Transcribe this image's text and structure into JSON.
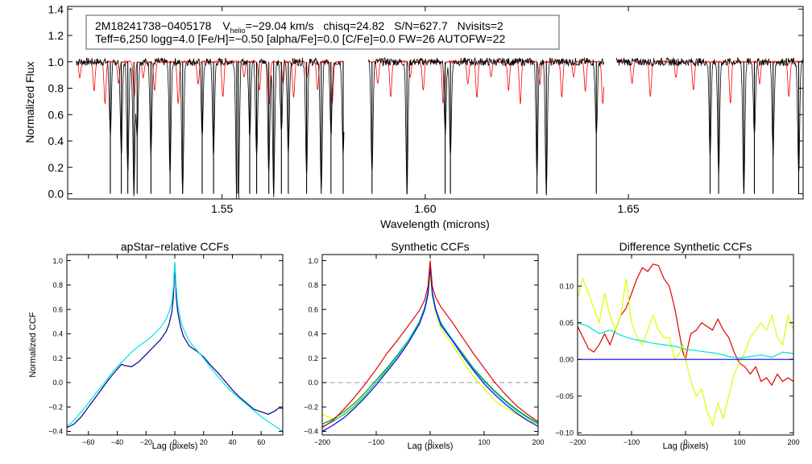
{
  "chart_data": [
    {
      "id": "spectrum",
      "type": "line",
      "title": "",
      "xlabel": "Wavelength (microns)",
      "ylabel": "Normalized Flux",
      "xlim": [
        1.512,
        1.693
      ],
      "ylim": [
        -0.04,
        1.42
      ],
      "xticks": [
        1.55,
        1.6,
        1.65
      ],
      "xtick_labels": [
        "1.55",
        "1.60",
        "1.65"
      ],
      "yticks": [
        0.0,
        0.2,
        0.4,
        0.6,
        0.8,
        1.0,
        1.2,
        1.4
      ],
      "ytick_labels": [
        "0.0",
        "0.2",
        "0.4",
        "0.6",
        "0.8",
        "1.0",
        "1.2",
        "1.4"
      ],
      "legend_position": "top-left",
      "annotation": {
        "star_id": "2M18241738−0405178",
        "vhelio_prefix": "V",
        "vhelio_subscript": "helio",
        "vhelio_value": "=−29.04 km/s",
        "chisq": "chisq=24.82",
        "snr": "S/N=627.7",
        "nvisits": "Nvisits=2",
        "line2": "Teff=6,250 logg=4.0 [Fe/H]=−0.50 [alpha/Fe]=0.0 [C/Fe]=0.0 FW=26 AUTOFW=22"
      },
      "chips": [
        [
          1.514,
          1.58
        ],
        [
          1.586,
          1.644
        ],
        [
          1.647,
          1.697
        ]
      ],
      "continuum": 1.0,
      "observed_lines": [
        1.5225,
        1.5252,
        1.5268,
        1.5283,
        1.5291,
        1.5325,
        1.5372,
        1.5403,
        1.5451,
        1.5479,
        1.5536,
        1.554,
        1.5568,
        1.5585,
        1.5615,
        1.5627,
        1.5646,
        1.5663,
        1.5708,
        1.5744,
        1.5768,
        1.5798,
        1.5869,
        1.5955,
        1.6049,
        1.6062,
        1.6275,
        1.6298,
        1.6421,
        1.6701,
        1.6722,
        1.6784,
        1.681,
        1.6856,
        1.6919
      ],
      "model_lines": [
        1.515,
        1.5185,
        1.5212,
        1.5245,
        1.5284,
        1.5306,
        1.5334,
        1.5392,
        1.5441,
        1.5502,
        1.5554,
        1.5592,
        1.5616,
        1.565,
        1.5676,
        1.5709,
        1.5735,
        1.5771,
        1.5883,
        1.5915,
        1.5963,
        1.5995,
        1.6044,
        1.6105,
        1.6127,
        1.6162,
        1.6205,
        1.6234,
        1.6282,
        1.6336,
        1.6365,
        1.6394,
        1.6437,
        1.6509,
        1.6554,
        1.6617,
        1.666,
        1.6751,
        1.6823,
        1.6895
      ],
      "series": [
        {
          "name": "observed",
          "color": "#000000"
        },
        {
          "name": "model",
          "color": "#ff0000"
        }
      ]
    },
    {
      "id": "apstar",
      "type": "line",
      "title": "apStar−relative CCFs",
      "xlabel": "Lag (pixels)",
      "ylabel": "Normalized CCF",
      "xlim": [
        -75,
        75
      ],
      "ylim": [
        -0.43,
        1.05
      ],
      "xticks": [
        -60,
        -40,
        -20,
        0,
        20,
        40,
        60
      ],
      "xtick_labels": [
        "−60",
        "−40",
        "−20",
        "0",
        "20",
        "40",
        "60"
      ],
      "yticks": [
        -0.4,
        -0.2,
        0.0,
        0.2,
        0.4,
        0.6,
        0.8,
        1.0
      ],
      "ytick_labels": [
        "−0.4",
        "−0.2",
        "0.0",
        "0.2",
        "0.4",
        "0.6",
        "0.8",
        "1.0"
      ],
      "series": [
        {
          "name": "visit 1",
          "color": "#00008b",
          "x": [
            -75,
            -70,
            -65,
            -60,
            -55,
            -50,
            -45,
            -40,
            -37,
            -35,
            -30,
            -25,
            -20,
            -15,
            -10,
            -6,
            -4,
            -2,
            -1,
            0,
            1,
            2,
            4,
            6,
            10,
            15,
            20,
            25,
            30,
            35,
            40,
            45,
            50,
            55,
            60,
            65,
            70,
            72,
            75
          ],
          "values": [
            -0.37,
            -0.34,
            -0.28,
            -0.2,
            -0.12,
            -0.04,
            0.04,
            0.11,
            0.15,
            0.14,
            0.13,
            0.17,
            0.23,
            0.29,
            0.35,
            0.42,
            0.48,
            0.58,
            0.7,
            0.97,
            0.7,
            0.58,
            0.46,
            0.38,
            0.3,
            0.26,
            0.21,
            0.14,
            0.08,
            0.01,
            -0.06,
            -0.12,
            -0.17,
            -0.22,
            -0.24,
            -0.26,
            -0.23,
            -0.21,
            -0.21
          ]
        },
        {
          "name": "visit 2",
          "color": "#00e5e5",
          "x": [
            -75,
            -70,
            -65,
            -60,
            -55,
            -50,
            -45,
            -40,
            -35,
            -30,
            -25,
            -20,
            -15,
            -10,
            -6,
            -4,
            -2,
            -1,
            0,
            1,
            2,
            4,
            6,
            10,
            15,
            20,
            25,
            30,
            35,
            40,
            45,
            50,
            55,
            60,
            65,
            70,
            75
          ],
          "values": [
            -0.36,
            -0.31,
            -0.24,
            -0.17,
            -0.09,
            -0.02,
            0.06,
            0.13,
            0.19,
            0.25,
            0.3,
            0.34,
            0.39,
            0.45,
            0.52,
            0.58,
            0.66,
            0.78,
            0.99,
            0.78,
            0.64,
            0.52,
            0.44,
            0.34,
            0.27,
            0.2,
            0.12,
            0.05,
            -0.02,
            -0.08,
            -0.13,
            -0.18,
            -0.23,
            -0.28,
            -0.32,
            -0.36,
            -0.4
          ]
        }
      ]
    },
    {
      "id": "synthetic",
      "type": "line",
      "title": "Synthetic CCFs",
      "xlabel": "Lag (pixels)",
      "ylabel": "",
      "xlim": [
        -200,
        200
      ],
      "ylim": [
        -0.43,
        1.05
      ],
      "xticks": [
        -200,
        -100,
        0,
        100,
        200
      ],
      "xtick_labels": [
        "−200",
        "−100",
        "0",
        "100",
        "200"
      ],
      "yticks": [
        -0.4,
        -0.2,
        0.0,
        0.2,
        0.4,
        0.6,
        0.8,
        1.0
      ],
      "ytick_labels": [
        "−0.4",
        "−0.2",
        "0.0",
        "0.2",
        "0.4",
        "0.6",
        "0.8",
        "1.0"
      ],
      "reference_line": 0.0,
      "series": [
        {
          "name": "yellow",
          "color": "#d9ff00",
          "x": [
            -200,
            -180,
            -160,
            -140,
            -120,
            -100,
            -80,
            -60,
            -40,
            -20,
            -10,
            -4,
            0,
            4,
            10,
            20,
            40,
            60,
            80,
            100,
            120,
            140,
            160,
            180,
            200
          ],
          "values": [
            -0.26,
            -0.3,
            -0.27,
            -0.2,
            -0.11,
            0.0,
            0.1,
            0.22,
            0.34,
            0.48,
            0.6,
            0.72,
            0.88,
            0.72,
            0.58,
            0.44,
            0.32,
            0.18,
            0.05,
            -0.05,
            -0.15,
            -0.21,
            -0.26,
            -0.31,
            -0.34
          ]
        },
        {
          "name": "green",
          "color": "#00a000",
          "x": [
            -200,
            -180,
            -160,
            -140,
            -120,
            -100,
            -80,
            -60,
            -40,
            -20,
            -10,
            -4,
            0,
            4,
            10,
            20,
            40,
            60,
            80,
            100,
            120,
            140,
            160,
            180,
            200
          ],
          "values": [
            -0.34,
            -0.3,
            -0.24,
            -0.17,
            -0.08,
            0.02,
            0.12,
            0.23,
            0.35,
            0.49,
            0.6,
            0.72,
            0.95,
            0.72,
            0.6,
            0.48,
            0.36,
            0.24,
            0.12,
            0.02,
            -0.07,
            -0.15,
            -0.22,
            -0.28,
            -0.33
          ]
        },
        {
          "name": "cyan",
          "color": "#00c8c8",
          "x": [
            -200,
            -180,
            -160,
            -140,
            -120,
            -100,
            -80,
            -60,
            -40,
            -20,
            -10,
            -4,
            0,
            4,
            10,
            20,
            40,
            60,
            80,
            100,
            120,
            140,
            160,
            180,
            200
          ],
          "values": [
            -0.36,
            -0.32,
            -0.26,
            -0.19,
            -0.1,
            0.0,
            0.11,
            0.22,
            0.35,
            0.5,
            0.62,
            0.74,
            0.96,
            0.74,
            0.61,
            0.49,
            0.36,
            0.23,
            0.11,
            0.01,
            -0.08,
            -0.16,
            -0.23,
            -0.29,
            -0.34
          ]
        },
        {
          "name": "blue",
          "color": "#0000ff",
          "x": [
            -200,
            -180,
            -160,
            -140,
            -120,
            -100,
            -80,
            -60,
            -40,
            -20,
            -10,
            -4,
            0,
            4,
            10,
            20,
            40,
            60,
            80,
            100,
            120,
            140,
            160,
            180,
            200
          ],
          "values": [
            -0.4,
            -0.35,
            -0.29,
            -0.21,
            -0.12,
            -0.02,
            0.09,
            0.2,
            0.33,
            0.48,
            0.6,
            0.73,
            0.96,
            0.73,
            0.6,
            0.47,
            0.35,
            0.22,
            0.1,
            -0.01,
            -0.1,
            -0.18,
            -0.25,
            -0.31,
            -0.36
          ]
        },
        {
          "name": "red",
          "color": "#e00000",
          "x": [
            -200,
            -180,
            -160,
            -140,
            -120,
            -100,
            -80,
            -60,
            -40,
            -20,
            -10,
            -4,
            0,
            4,
            10,
            20,
            40,
            60,
            80,
            100,
            120,
            140,
            160,
            180,
            200
          ],
          "values": [
            -0.37,
            -0.31,
            -0.22,
            -0.12,
            -0.01,
            0.11,
            0.24,
            0.35,
            0.47,
            0.59,
            0.68,
            0.79,
            1.0,
            0.79,
            0.7,
            0.62,
            0.5,
            0.37,
            0.24,
            0.12,
            0.0,
            -0.1,
            -0.19,
            -0.26,
            -0.32
          ]
        }
      ]
    },
    {
      "id": "difference",
      "type": "line",
      "title": "Difference Synthetic CCFs",
      "xlabel": "Lag (pixels)",
      "ylabel": "",
      "xlim": [
        -200,
        200
      ],
      "ylim": [
        -0.103,
        0.143
      ],
      "xticks": [
        -200,
        -100,
        0,
        100,
        200
      ],
      "xtick_labels": [
        "−200",
        "−100",
        "0",
        "100",
        "200"
      ],
      "yticks": [
        -0.1,
        -0.05,
        0.0,
        0.05,
        0.1
      ],
      "ytick_labels": [
        "−0.10",
        "−0.05",
        "0.00",
        "0.05",
        "0.10"
      ],
      "series": [
        {
          "name": "red",
          "color": "#e00000",
          "x": [
            -200,
            -190,
            -180,
            -170,
            -160,
            -150,
            -140,
            -130,
            -120,
            -110,
            -100,
            -90,
            -80,
            -70,
            -60,
            -50,
            -40,
            -30,
            -20,
            -10,
            -5,
            0,
            5,
            10,
            20,
            30,
            40,
            50,
            60,
            70,
            80,
            90,
            100,
            110,
            120,
            130,
            140,
            150,
            160,
            170,
            180,
            190,
            200
          ],
          "values": [
            0.045,
            0.03,
            0.015,
            0.01,
            0.02,
            0.035,
            0.02,
            0.04,
            0.06,
            0.07,
            0.09,
            0.11,
            0.125,
            0.12,
            0.13,
            0.128,
            0.11,
            0.1,
            0.07,
            0.03,
            0.01,
            0.0,
            0.02,
            0.035,
            0.04,
            0.05,
            0.045,
            0.04,
            0.055,
            0.04,
            0.03,
            0.01,
            -0.005,
            -0.01,
            -0.02,
            -0.01,
            -0.03,
            -0.025,
            -0.035,
            -0.02,
            -0.03,
            -0.025,
            -0.03
          ]
        },
        {
          "name": "yellow",
          "color": "#d9ff00",
          "x": [
            -200,
            -190,
            -180,
            -170,
            -160,
            -150,
            -140,
            -130,
            -120,
            -110,
            -100,
            -90,
            -80,
            -70,
            -60,
            -50,
            -40,
            -30,
            -20,
            -10,
            -5,
            0,
            5,
            10,
            20,
            30,
            40,
            50,
            60,
            70,
            80,
            90,
            100,
            110,
            120,
            130,
            140,
            150,
            160,
            170,
            180,
            190,
            200
          ],
          "values": [
            0.085,
            0.11,
            0.09,
            0.07,
            0.05,
            0.09,
            0.06,
            0.04,
            0.06,
            0.11,
            0.05,
            0.03,
            0.02,
            0.04,
            0.06,
            0.04,
            0.03,
            0.03,
            0.0,
            0.01,
            0.02,
            0.0,
            -0.015,
            -0.03,
            -0.05,
            -0.04,
            -0.07,
            -0.09,
            -0.06,
            -0.08,
            -0.05,
            -0.02,
            -0.005,
            0.01,
            0.03,
            0.04,
            0.05,
            0.04,
            0.06,
            0.03,
            0.02,
            0.06,
            0.04
          ]
        },
        {
          "name": "cyan",
          "color": "#00e5c8",
          "x": [
            -200,
            -180,
            -160,
            -140,
            -120,
            -100,
            -80,
            -60,
            -40,
            -20,
            0,
            20,
            40,
            60,
            80,
            100,
            120,
            140,
            160,
            180,
            200
          ],
          "values": [
            0.05,
            0.045,
            0.035,
            0.04,
            0.033,
            0.028,
            0.025,
            0.022,
            0.02,
            0.018,
            0.014,
            0.012,
            0.01,
            0.008,
            0.004,
            0.002,
            0.004,
            0.006,
            0.003,
            0.01,
            0.008
          ]
        },
        {
          "name": "blue",
          "color": "#0000ff",
          "x": [
            -200,
            200
          ],
          "values": [
            0.0,
            0.0
          ]
        }
      ]
    }
  ]
}
